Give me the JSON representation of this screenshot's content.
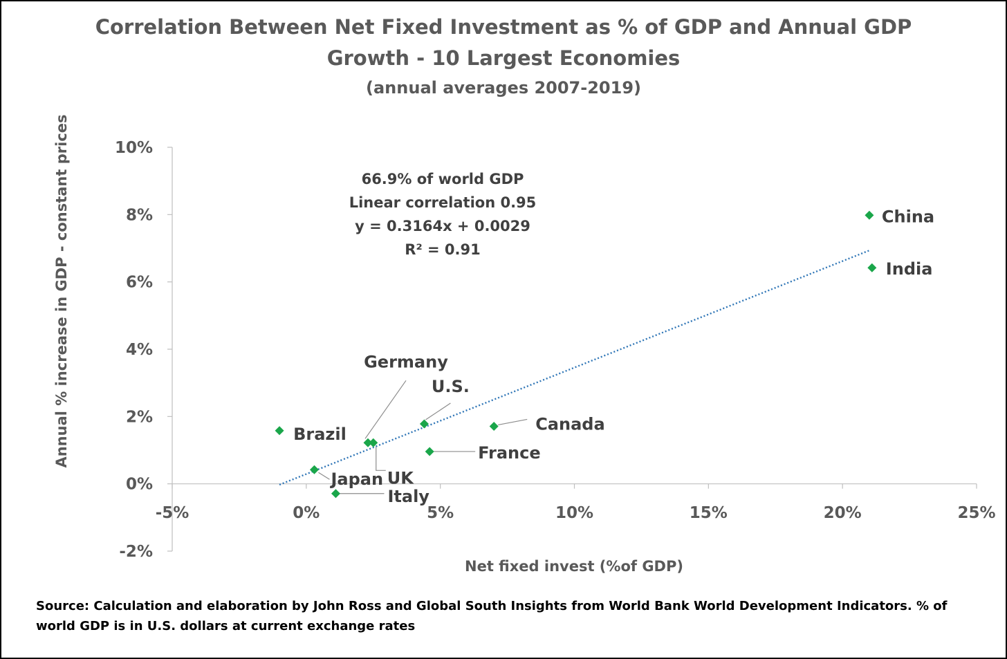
{
  "chart_data": {
    "type": "scatter",
    "title": "Correlation Between Net Fixed Investment as % of GDP and Annual GDP",
    "title_line2": "Growth - 10 Largest Economies",
    "subtitle": "(annual averages 2007-2019)",
    "xlabel": "Net fixed invest (%of GDP)",
    "ylabel": "Annual % increase in GDP - constant prices",
    "xlim": [
      -5,
      25
    ],
    "ylim": [
      -2,
      10
    ],
    "x_ticks": [
      -5,
      0,
      5,
      10,
      15,
      20,
      25
    ],
    "y_ticks": [
      -2,
      0,
      2,
      4,
      6,
      8,
      10
    ],
    "x_tick_labels": [
      "-5%",
      "0%",
      "5%",
      "10%",
      "15%",
      "20%",
      "25%"
    ],
    "y_tick_labels": [
      "-2%",
      "0%",
      "2%",
      "4%",
      "6%",
      "8%",
      "10%"
    ],
    "grid": false,
    "marker_color": "#1aa64a",
    "trendline": {
      "type": "linear",
      "slope": 0.3164,
      "intercept": 0.29,
      "x_range": [
        -1.0,
        21.0
      ],
      "color": "#2e75b6",
      "style": "dotted"
    },
    "annotation_lines": [
      "66.9% of world GDP",
      "Linear correlation 0.95",
      "y = 0.3164x + 0.0029",
      "R² = 0.91"
    ],
    "points": [
      {
        "label": "China",
        "x": 21.0,
        "y": 7.98
      },
      {
        "label": "India",
        "x": 21.1,
        "y": 6.42
      },
      {
        "label": "Brazil",
        "x": -1.0,
        "y": 1.58
      },
      {
        "label": "Germany",
        "x": 2.3,
        "y": 1.22
      },
      {
        "label": "UK",
        "x": 2.5,
        "y": 1.22
      },
      {
        "label": "U.S.",
        "x": 4.4,
        "y": 1.78
      },
      {
        "label": "Canada",
        "x": 7.0,
        "y": 1.71
      },
      {
        "label": "France",
        "x": 4.6,
        "y": 0.96
      },
      {
        "label": "Japan",
        "x": 0.3,
        "y": 0.42
      },
      {
        "label": "Italy",
        "x": 1.1,
        "y": -0.29
      }
    ]
  },
  "source": "Source: Calculation and elaboration by John Ross and Global South Insights from World Bank World Development Indicators. % of world GDP is in U.S. dollars at current exchange rates"
}
